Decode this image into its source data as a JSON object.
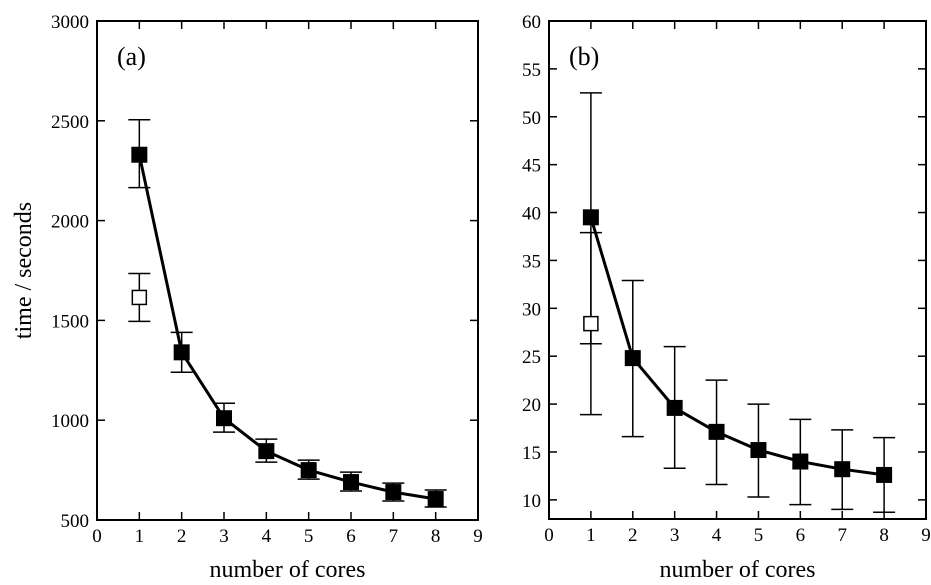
{
  "chart_data": [
    {
      "type": "line",
      "panel_label": "(a)",
      "xlabel": "number of cores",
      "ylabel": "time / seconds",
      "xlim": [
        0,
        9
      ],
      "ylim": [
        500,
        3000
      ],
      "x_ticks": [
        0,
        1,
        2,
        3,
        4,
        5,
        6,
        7,
        8,
        9
      ],
      "y_ticks": [
        500,
        1000,
        1500,
        2000,
        2500,
        3000
      ],
      "grid": false,
      "series": [
        {
          "marker": "filled-square",
          "line": true,
          "x": [
            1,
            2,
            3,
            4,
            5,
            6,
            7,
            8
          ],
          "y": [
            2330,
            1340,
            1010,
            845,
            750,
            690,
            640,
            605
          ],
          "err_low": [
            2165,
            1240,
            940,
            790,
            705,
            645,
            595,
            565
          ],
          "err_high": [
            2505,
            1440,
            1085,
            905,
            800,
            740,
            685,
            650
          ]
        },
        {
          "marker": "open-square",
          "line": false,
          "x": [
            1
          ],
          "y": [
            1615
          ],
          "err_low": [
            1495
          ],
          "err_high": [
            1735
          ]
        }
      ]
    },
    {
      "type": "line",
      "panel_label": "(b)",
      "xlabel": "number of cores",
      "ylabel": "",
      "xlim": [
        0,
        9
      ],
      "ylim": [
        8,
        60
      ],
      "x_ticks": [
        0,
        1,
        2,
        3,
        4,
        5,
        6,
        7,
        8,
        9
      ],
      "y_ticks": [
        10,
        15,
        20,
        25,
        30,
        35,
        40,
        45,
        50,
        55,
        60
      ],
      "grid": false,
      "series": [
        {
          "marker": "filled-square",
          "line": true,
          "x": [
            1,
            2,
            3,
            4,
            5,
            6,
            7,
            8
          ],
          "y": [
            39.5,
            24.8,
            19.6,
            17.1,
            15.2,
            14.0,
            13.2,
            12.6
          ],
          "err_low": [
            26.3,
            16.6,
            13.3,
            11.6,
            10.3,
            9.5,
            9.0,
            8.7
          ],
          "err_high": [
            52.5,
            32.9,
            26.0,
            22.5,
            20.0,
            18.4,
            17.3,
            16.5
          ]
        },
        {
          "marker": "open-square",
          "line": false,
          "x": [
            1
          ],
          "y": [
            28.4
          ],
          "err_low": [
            18.9
          ],
          "err_high": [
            37.9
          ]
        }
      ]
    }
  ]
}
